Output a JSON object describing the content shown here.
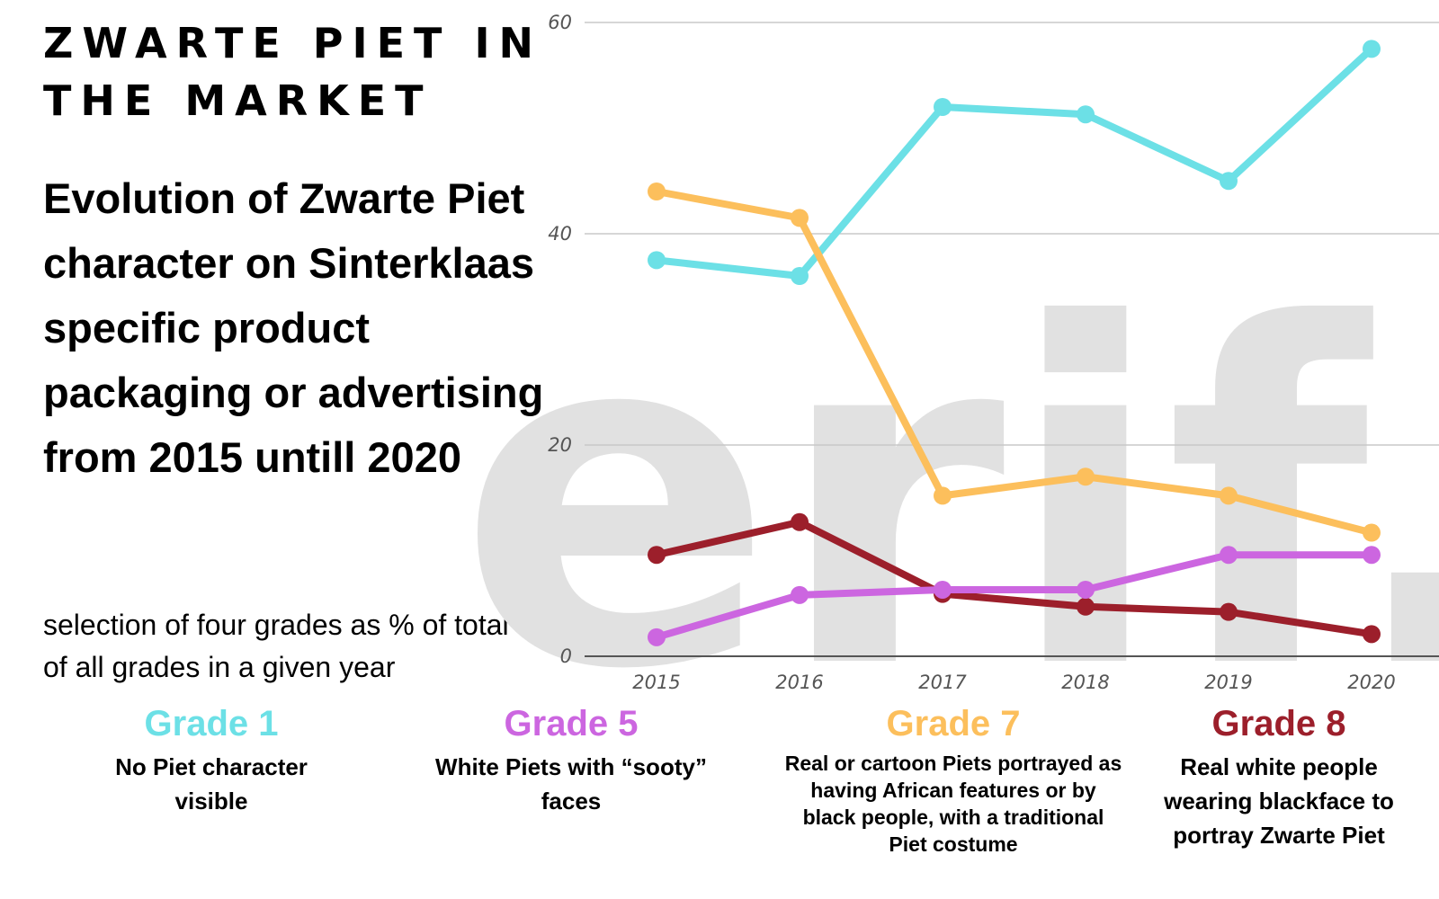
{
  "header": {
    "title": "ZWARTE PIET IN\nTHE MARKET",
    "subtitle": "Evolution of Zwarte Piet character on Sinterklaas specific product packaging or advertising from 2015 untill 2020",
    "note": "selection of  four grades as % of total of all grades in a given year"
  },
  "watermark": {
    "text": "erif."
  },
  "legend": [
    {
      "name": "Grade 1",
      "description": "No Piet character visible",
      "color": "#6ce0e6"
    },
    {
      "name": "Grade 5",
      "description": "White Piets with “sooty” faces",
      "color": "#cc66e0"
    },
    {
      "name": "Grade 7",
      "description": "Real or cartoon Piets portrayed as having African features or by black people, with a traditional Piet costume",
      "color": "#fcbf5c"
    },
    {
      "name": "Grade 8",
      "description": "Real white people wearing blackface to portray Zwarte Piet",
      "color": "#9c1f2b"
    }
  ],
  "chart_data": {
    "type": "line",
    "x": [
      "2015",
      "2016",
      "2017",
      "2018",
      "2019",
      "2020"
    ],
    "ylim": [
      0,
      60
    ],
    "yticks": [
      "0",
      "20",
      "40",
      "60"
    ],
    "grid": true,
    "series": [
      {
        "name": "Grade 1",
        "color": "#6ce0e6",
        "values": [
          37.5,
          36,
          52,
          51.3,
          45,
          57.5
        ]
      },
      {
        "name": "Grade 7",
        "color": "#fcbf5c",
        "values": [
          44,
          41.5,
          15.2,
          17,
          15.2,
          11.7
        ]
      },
      {
        "name": "Grade 8",
        "color": "#9c1f2b",
        "values": [
          9.6,
          12.7,
          5.9,
          4.7,
          4.2,
          2.1
        ]
      },
      {
        "name": "Grade 5",
        "color": "#cc66e0",
        "values": [
          1.8,
          5.8,
          6.3,
          6.3,
          9.6,
          9.6
        ]
      }
    ]
  }
}
